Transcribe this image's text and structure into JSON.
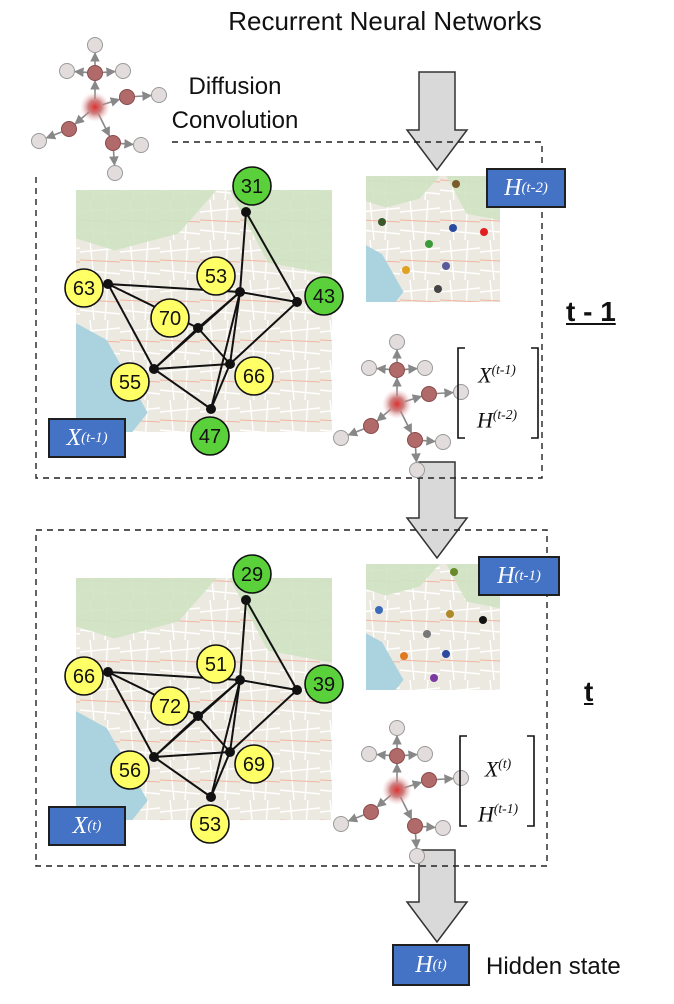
{
  "title": "Recurrent Neural Networks",
  "diffusion_label": [
    "Diffusion",
    "Convolution"
  ],
  "hidden_state_label": "Hidden state",
  "colors": {
    "accent_box": "#4472c4",
    "node_yellow": "#ffff66",
    "node_green": "#5ad13a",
    "arrow_fill": "#d9d9d9",
    "graph_node_red": "#b06a6a",
    "graph_node_gray": "#e3dcdc"
  },
  "steps": [
    {
      "label": "t - 1",
      "input_box": {
        "base": "X",
        "sup": "(t-1)"
      },
      "hidden_box": {
        "base": "H",
        "sup": "(t-2)"
      },
      "matrix": [
        {
          "base": "X",
          "sup": "(t-1)"
        },
        {
          "base": "H",
          "sup": "(t-2)"
        }
      ],
      "sensor_values": [
        "31",
        "63",
        "53",
        "43",
        "70",
        "55",
        "66",
        "47"
      ]
    },
    {
      "label": "t",
      "input_box": {
        "base": "X",
        "sup": "(t)"
      },
      "hidden_box": {
        "base": "H",
        "sup": "(t-1)"
      },
      "matrix": [
        {
          "base": "X",
          "sup": "(t)"
        },
        {
          "base": "H",
          "sup": "(t-1)"
        }
      ],
      "sensor_values": [
        "29",
        "66",
        "51",
        "39",
        "72",
        "56",
        "69",
        "53"
      ]
    }
  ],
  "output_box": {
    "base": "H",
    "sup": "(t)"
  }
}
